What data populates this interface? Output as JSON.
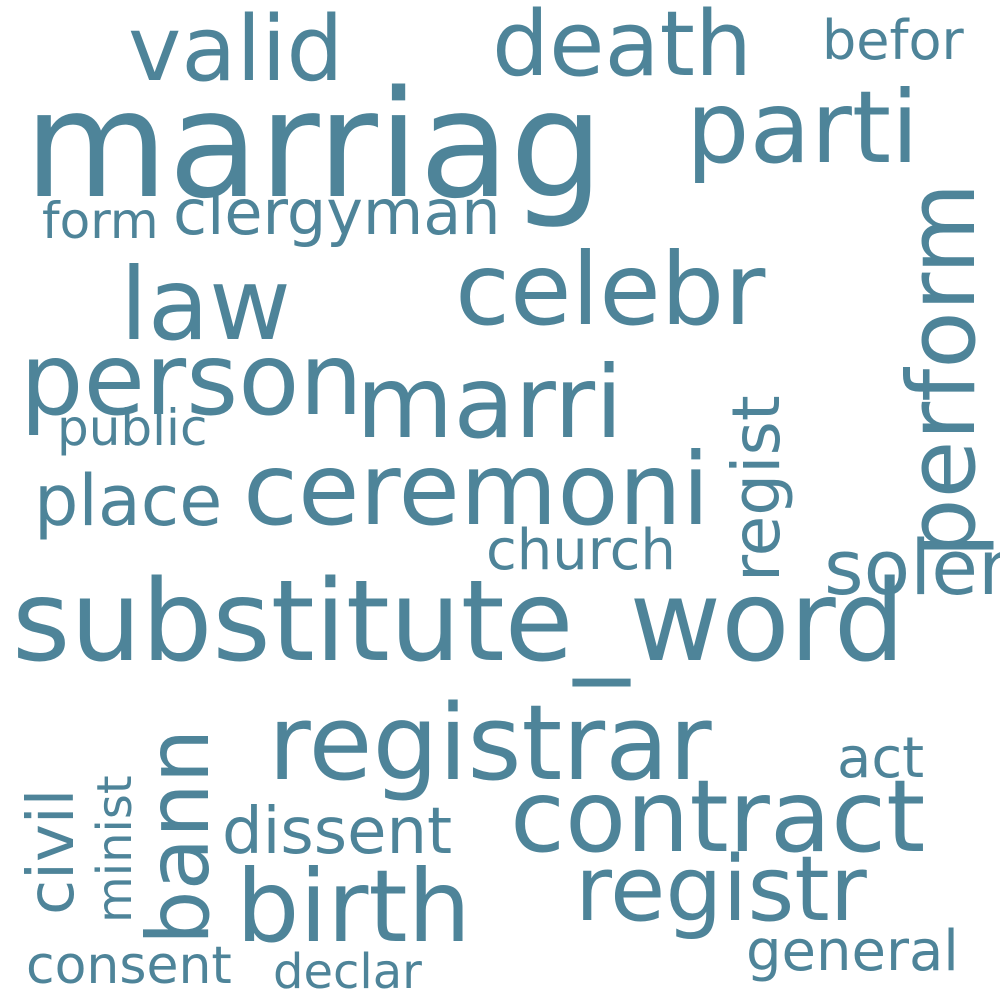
{
  "cloud": {
    "color": "#4e8499",
    "words": [
      "marriag",
      "valid",
      "death",
      "befor",
      "parti",
      "form",
      "clergyman",
      "law",
      "celebr",
      "solemn",
      "perform",
      "person",
      "marri",
      "regist",
      "public",
      "place",
      "ceremoni",
      "church",
      "substitute_word",
      "registrar",
      "act",
      "civil",
      "minist",
      "bann",
      "dissent",
      "contract",
      "birth",
      "registr",
      "consent",
      "declar",
      "general"
    ]
  }
}
